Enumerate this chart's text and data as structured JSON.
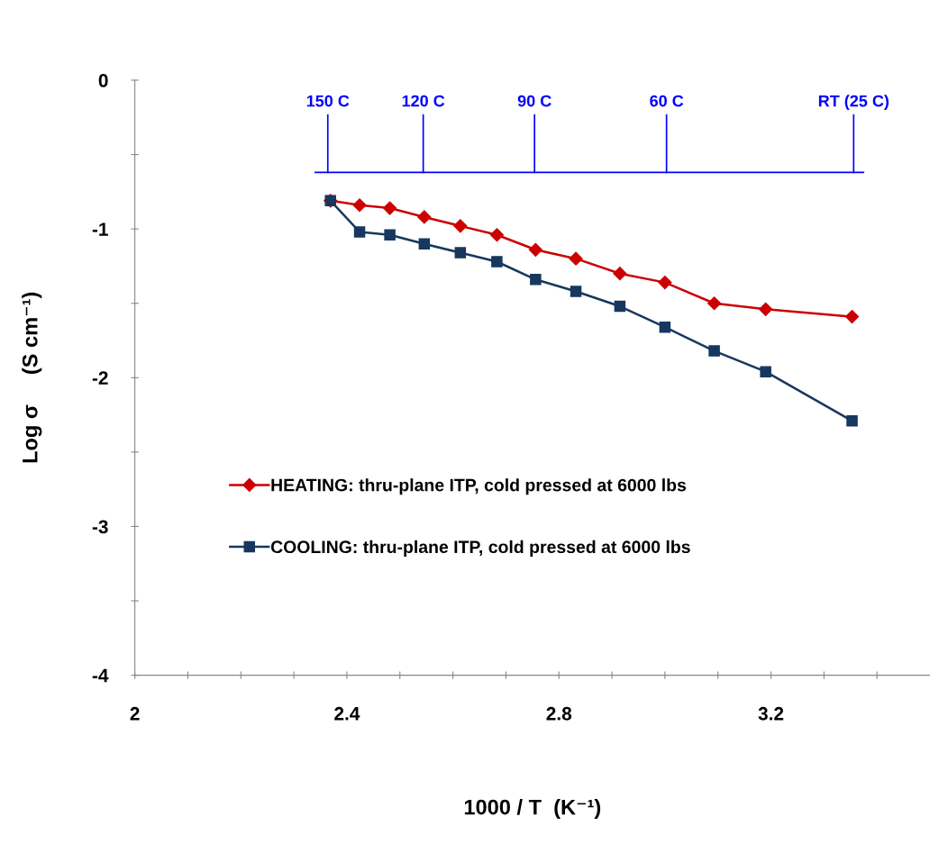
{
  "chart_data": {
    "type": "line",
    "xlabel": "1000 / T  (K⁻¹)",
    "ylabel": "Log σ     (S cm⁻¹)",
    "x": [
      2.369,
      2.424,
      2.481,
      2.546,
      2.614,
      2.683,
      2.756,
      2.832,
      2.915,
      3.0,
      3.093,
      3.19,
      3.353
    ],
    "series": [
      {
        "name": "HEATING: thru-plane ITP, cold pressed at 6000 lbs",
        "color": "#cc0000",
        "marker": "diamond",
        "values": [
          -0.81,
          -0.84,
          -0.86,
          -0.92,
          -0.98,
          -1.04,
          -1.14,
          -1.2,
          -1.3,
          -1.36,
          -1.5,
          -1.54,
          -1.59
        ]
      },
      {
        "name": "COOLING: thru-plane ITP, cold pressed at 6000 lbs",
        "color": "#17375e",
        "marker": "square",
        "values": [
          -0.81,
          -1.02,
          -1.04,
          -1.1,
          -1.16,
          -1.22,
          -1.34,
          -1.42,
          -1.52,
          -1.66,
          -1.82,
          -1.96,
          -2.29
        ]
      }
    ],
    "xlim": [
      2,
      3.5
    ],
    "xticks": [
      2,
      {
        "value": 2.1,
        "label": null
      },
      {
        "value": 2.2,
        "label": null
      },
      {
        "value": 2.3,
        "label": null
      },
      2.4,
      {
        "value": 2.5,
        "label": null
      },
      {
        "value": 2.6,
        "label": null
      },
      {
        "value": 2.7,
        "label": null
      },
      2.8,
      {
        "value": 2.9,
        "label": null
      },
      {
        "value": 3.0,
        "label": null
      },
      {
        "value": 3.1,
        "label": null
      },
      3.2,
      {
        "value": 3.3,
        "label": null
      },
      {
        "value": 3.4,
        "label": null
      }
    ],
    "ylim": [
      -4,
      0
    ],
    "yticks": [
      -4,
      {
        "value": -3.5,
        "label": null
      },
      -3,
      {
        "value": -2.5,
        "label": null
      },
      -2,
      {
        "value": -1.5,
        "label": null
      },
      -1,
      {
        "value": -0.5,
        "label": null
      },
      0
    ],
    "annotations": [
      {
        "text": "150 C",
        "x": 2.364,
        "y": -0.62
      },
      {
        "text": "120 C",
        "x": 2.544,
        "y": -0.62
      },
      {
        "text": "90 C",
        "x": 2.754,
        "y": -0.62
      },
      {
        "text": "60 C",
        "x": 3.003,
        "y": -0.62
      },
      {
        "text": "RT (25 C)",
        "x": 3.356,
        "y": -0.62
      }
    ],
    "ref_lines": [
      {
        "axis": "y",
        "value": -0.62,
        "color": "#0000ff"
      }
    ],
    "grid": false,
    "legend": "left",
    "line_style": "solid"
  }
}
